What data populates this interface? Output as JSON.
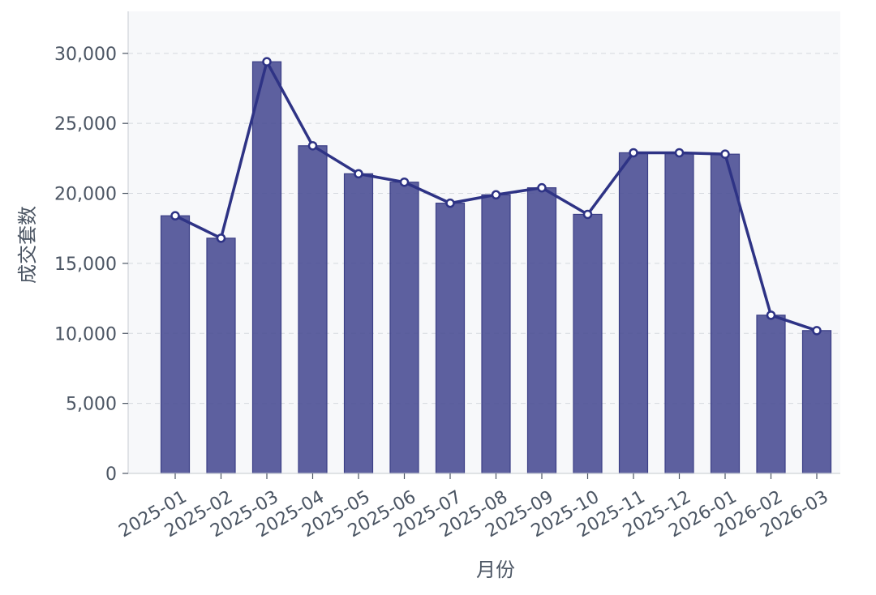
{
  "chart_data": {
    "type": "bar",
    "categories": [
      "2025-01",
      "2025-02",
      "2025-03",
      "2025-04",
      "2025-05",
      "2025-06",
      "2025-07",
      "2025-08",
      "2025-09",
      "2025-10",
      "2025-11",
      "2025-12",
      "2026-01",
      "2026-02",
      "2026-03"
    ],
    "series": [
      {
        "type": "bar",
        "values": [
          18400,
          16800,
          29400,
          23400,
          21400,
          20800,
          19300,
          19900,
          20400,
          18500,
          22900,
          22900,
          22800,
          11300,
          10200
        ]
      },
      {
        "type": "line",
        "values": [
          18400,
          16800,
          29400,
          23400,
          21400,
          20800,
          19300,
          19900,
          20400,
          18500,
          22900,
          22900,
          22800,
          11300,
          10200
        ]
      }
    ],
    "xlabel": "月份",
    "ylabel": "成交套数",
    "ylim": [
      0,
      33000
    ],
    "yticks": [
      0,
      5000,
      10000,
      15000,
      20000,
      25000,
      30000
    ],
    "ytick_labels": [
      "0",
      "5,000",
      "10,000",
      "15,000",
      "20,000",
      "25,000",
      "30,000"
    ],
    "grid": "y-dashed",
    "colors": {
      "bar": "#4b4f95",
      "line": "#2e3385",
      "plot_bg": "#f7f8fa"
    }
  }
}
